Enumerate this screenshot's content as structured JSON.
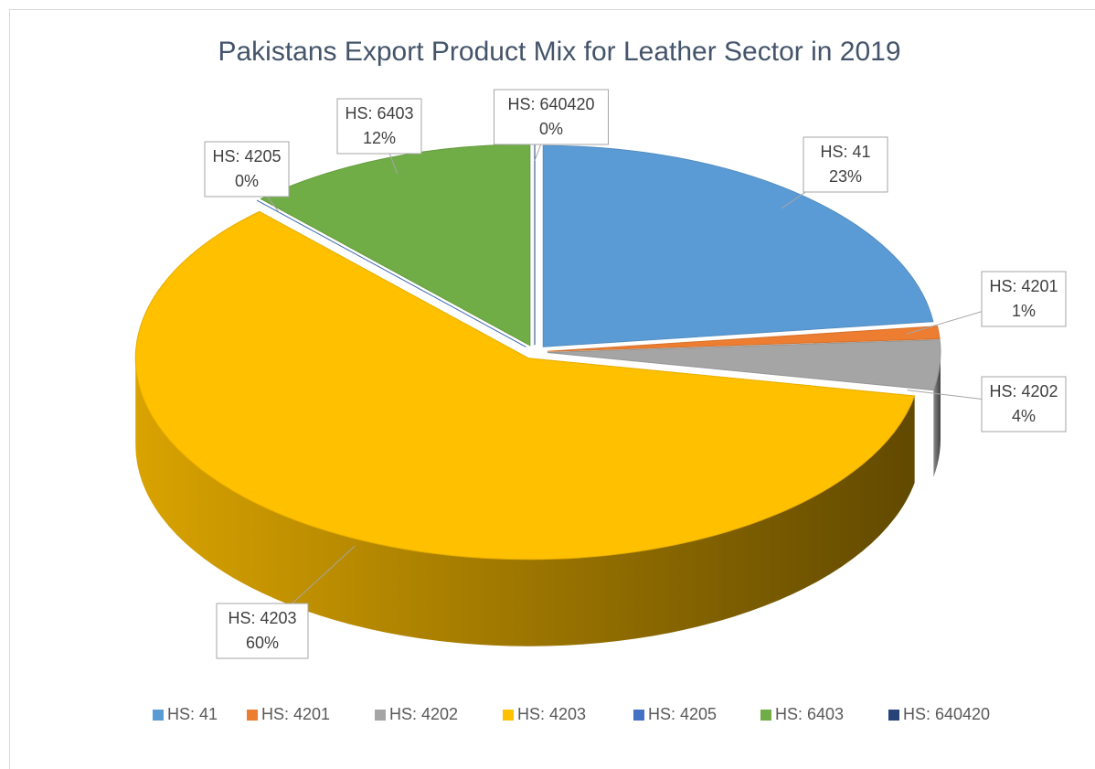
{
  "chart_data": {
    "type": "pie",
    "title": "Pakistans Export Product Mix for Leather Sector in 2019",
    "categories": [
      "HS: 41",
      "HS: 4201",
      "HS: 4202",
      "HS: 4203",
      "HS: 4205",
      "HS: 6403",
      "HS: 640420"
    ],
    "values": [
      23,
      1,
      4,
      60,
      0,
      12,
      0
    ],
    "value_labels": [
      "23%",
      "1%",
      "4%",
      "60%",
      "0%",
      "12%",
      "0%"
    ],
    "colors": [
      "#5b9bd5",
      "#ed7d31",
      "#a5a5a5",
      "#ffc000",
      "#4472c4",
      "#70ad47",
      "#264478"
    ],
    "legend": "bottom"
  }
}
